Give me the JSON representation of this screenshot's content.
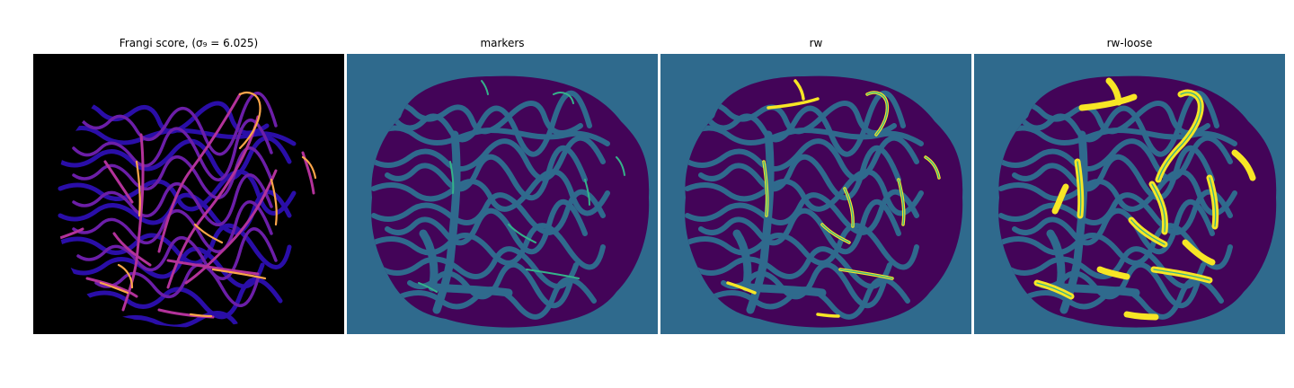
{
  "figure": {
    "panels": [
      {
        "title": "Frangi score, (σ₉ = 6.025)"
      },
      {
        "title": "markers"
      },
      {
        "title": "rw"
      },
      {
        "title": "rw-loose"
      }
    ]
  },
  "colors": {
    "black": "#000000",
    "blue_bg": "#2f6a8d",
    "purple": "#430458",
    "teal": "#35b28a",
    "yellow": "#f7e625",
    "indigo": "#2a0ea8",
    "magenta": "#b3329a",
    "orange": "#fca64a"
  }
}
